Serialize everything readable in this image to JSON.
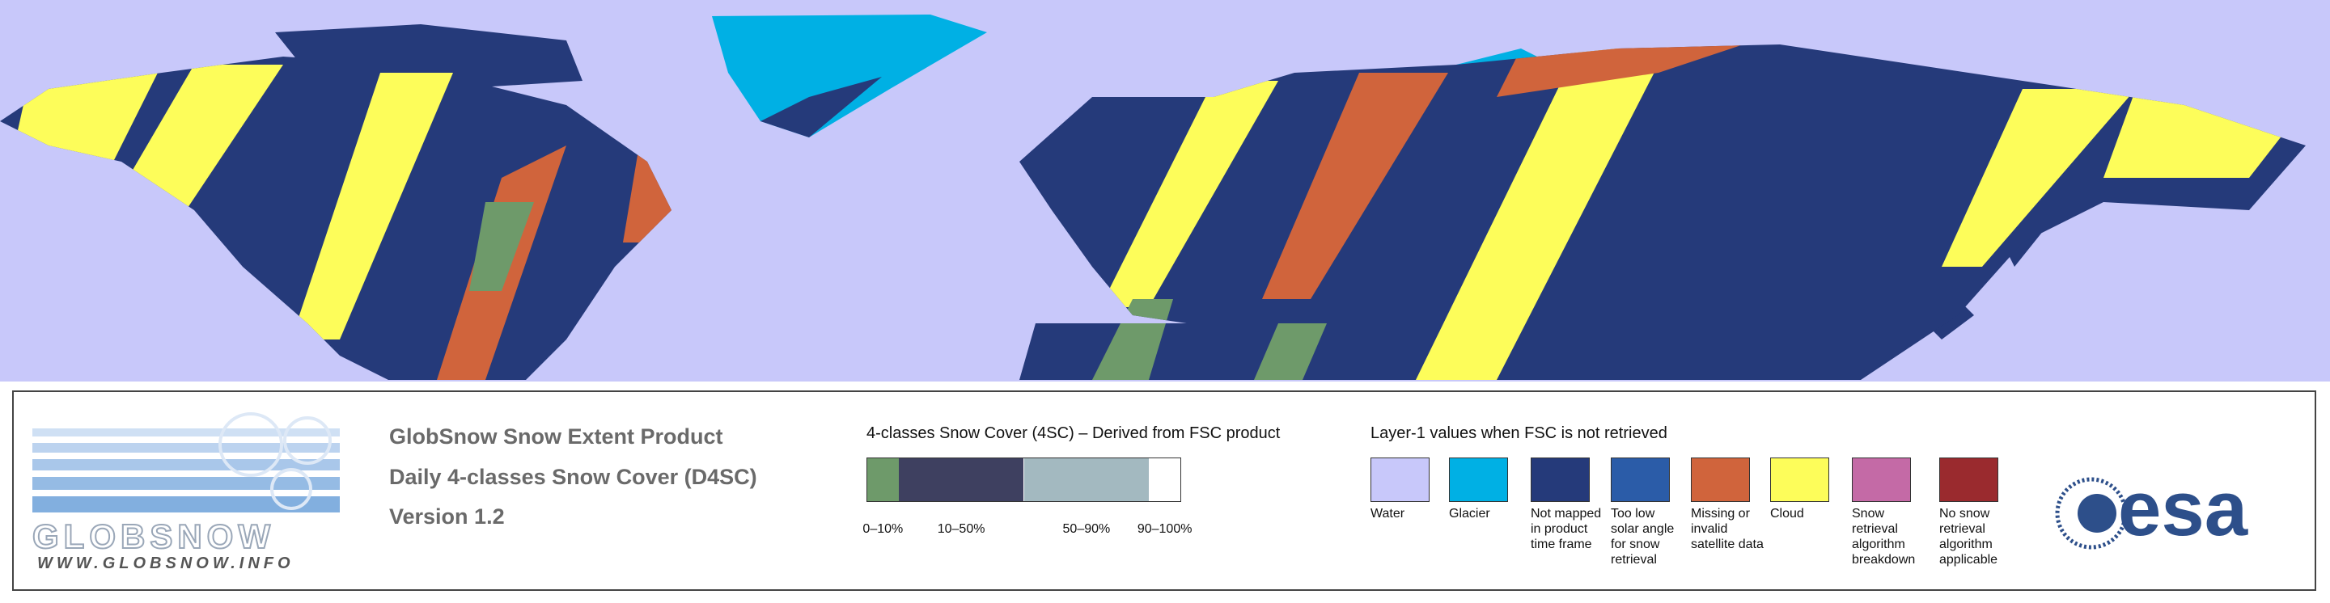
{
  "logo": {
    "wordmark": "GLOBSNOW",
    "url": "WWW.GLOBSNOW.INFO"
  },
  "product": {
    "lines": [
      "GlobSnow Snow Extent Product",
      "Daily 4-classes Snow Cover (D4SC)",
      "Version 1.2"
    ]
  },
  "scale": {
    "title": "4-classes Snow Cover (4SC) – Derived from FSC product",
    "classes": [
      {
        "label": "0–10%",
        "color": "#6e9a6a"
      },
      {
        "label": "10–50%",
        "color": "#3e4060"
      },
      {
        "label": "50–90%",
        "color": "#a3b9c0"
      },
      {
        "label": "90–100%",
        "color": "#ffffff"
      }
    ]
  },
  "layer1": {
    "title": "Layer-1 values when FSC is not retrieved",
    "items": [
      {
        "label": "Water",
        "color": "#c8c8fa"
      },
      {
        "label": "Glacier",
        "color": "#00b0e4"
      },
      {
        "label": "Not mapped in product time frame",
        "color": "#253a7a"
      },
      {
        "label": "Too low solar angle for snow retrieval",
        "color": "#2b5ca8"
      },
      {
        "label": "Missing or invalid satellite data",
        "color": "#d0643c"
      },
      {
        "label": "Cloud",
        "color": "#fdfd5a"
      },
      {
        "label": "Snow retrieval algorithm breakdown",
        "color": "#c46aa6"
      },
      {
        "label": "No snow retrieval algorithm applicable",
        "color": "#9a2a2e"
      }
    ]
  },
  "esa": "esa"
}
